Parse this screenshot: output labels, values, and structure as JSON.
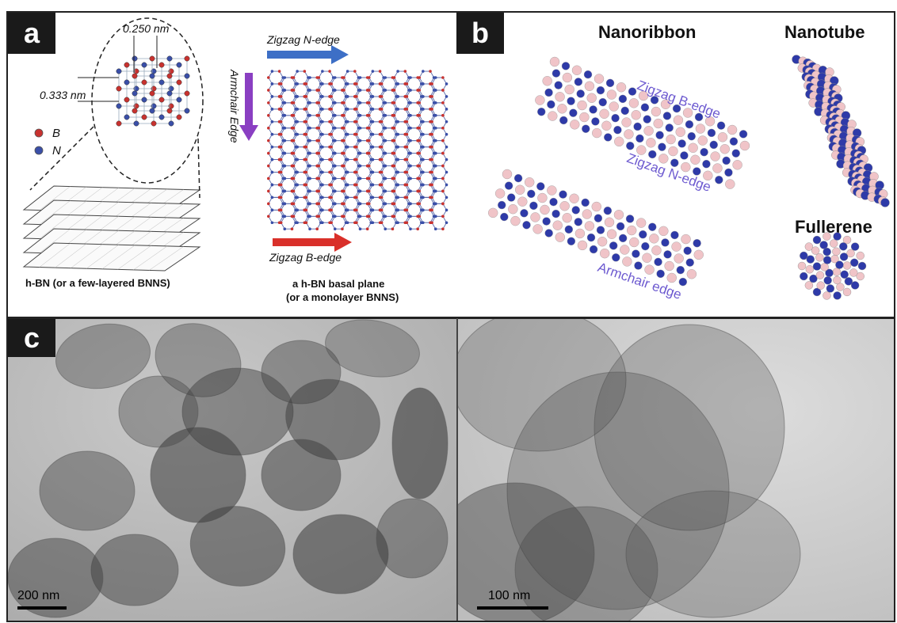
{
  "panels": {
    "a": {
      "tag": "a",
      "dim_top": "0.250 nm",
      "dim_left": "0.333 nm",
      "legend": [
        {
          "label": "B",
          "color": "#c8322f"
        },
        {
          "label": "N",
          "color": "#3a4fa8"
        }
      ],
      "edge_zigzag_n": "Zigzag N-edge",
      "edge_armchair": "Armchair Edge",
      "edge_zigzag_b": "Zigzag B-edge",
      "caption_left": "h-BN (or a few-layered BNNS)",
      "caption_right_line1": "a h-BN basal plane",
      "caption_right_line2": "(or a monolayer BNNS)"
    },
    "b": {
      "tag": "b",
      "title_nanoribbon": "Nanoribbon",
      "title_nanotube": "Nanotube",
      "title_fullerene": "Fullerene",
      "edge_zigzag_b": "Zigzag B-edge",
      "edge_zigzag_n": "Zigzag N-edge",
      "edge_armchair": "Armchair edge"
    },
    "c": {
      "tag": "c",
      "scale_left": "200 nm",
      "scale_right": "100 nm"
    }
  },
  "colors": {
    "boron_light": "#f0c4c8",
    "nitrogen_blue": "#2e3aa8",
    "arrow_blue": "#3d6fc6",
    "arrow_purple": "#8a3fc2",
    "arrow_red": "#d9302a",
    "edge_text": "#6d5ad0"
  }
}
